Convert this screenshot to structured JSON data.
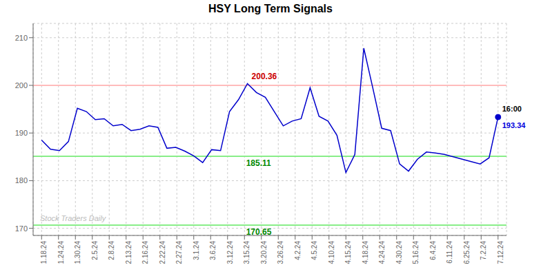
{
  "chart_data": {
    "type": "line",
    "title": "HSY Long Term Signals",
    "x": [
      0,
      0.5294,
      1.0588,
      1.5882,
      2.1176,
      2.6471,
      3.1765,
      3.7059,
      4.2353,
      4.7647,
      5.2941,
      5.8235,
      6.3529,
      6.8824,
      7.4118,
      7.9412,
      8.4706,
      9,
      9.5294,
      10.0588,
      10.5882,
      11.1176,
      11.6471,
      12.1765,
      12.7059,
      13.2353,
      13.7647,
      14.2941,
      14.8235,
      15.3529,
      15.8824,
      16.4118,
      16.9412,
      17.4706,
      18,
      18.5294,
      19.0588,
      19.5882,
      20.1176,
      20.6471,
      21.1765,
      21.7059,
      22.2353,
      22.7647,
      23.2941,
      23.8235,
      24.3529,
      24.8824,
      25.4118,
      25.9412,
      26.4706,
      27
    ],
    "values": [
      188.5,
      186.6,
      186.3,
      188.2,
      195.2,
      194.5,
      192.8,
      193.0,
      191.5,
      191.8,
      190.5,
      190.8,
      191.5,
      191.2,
      186.8,
      187.0,
      186.2,
      185.2,
      183.8,
      186.5,
      186.3,
      194.5,
      197.0,
      200.36,
      198.5,
      197.5,
      194.5,
      191.5,
      192.5,
      193.0,
      199.5,
      193.5,
      192.5,
      189.5,
      181.7,
      185.5,
      207.8,
      199.5,
      191.0,
      190.5,
      183.5,
      182.0,
      184.5,
      186.0,
      185.8,
      185.5,
      185.0,
      184.5,
      184.0,
      183.5,
      184.8,
      193.34
    ],
    "color": "#0000cc",
    "xlim": [
      -0.5,
      27.5
    ],
    "xticks": [
      {
        "value": 0,
        "label": "1.18.24"
      },
      {
        "value": 1,
        "label": "1.24.24"
      },
      {
        "value": 2,
        "label": "1.30.24"
      },
      {
        "value": 3,
        "label": "2.5.24"
      },
      {
        "value": 4,
        "label": "2.8.24"
      },
      {
        "value": 5,
        "label": "2.13.24"
      },
      {
        "value": 6,
        "label": "2.16.24"
      },
      {
        "value": 7,
        "label": "2.22.24"
      },
      {
        "value": 8,
        "label": "2.27.24"
      },
      {
        "value": 9,
        "label": "3.1.24"
      },
      {
        "value": 10,
        "label": "3.6.24"
      },
      {
        "value": 11,
        "label": "3.12.24"
      },
      {
        "value": 12,
        "label": "3.15.24"
      },
      {
        "value": 13,
        "label": "3.20.24"
      },
      {
        "value": 14,
        "label": "3.26.24"
      },
      {
        "value": 15,
        "label": "4.2.24"
      },
      {
        "value": 16,
        "label": "4.5.24"
      },
      {
        "value": 17,
        "label": "4.10.24"
      },
      {
        "value": 18,
        "label": "4.15.24"
      },
      {
        "value": 19,
        "label": "4.18.24"
      },
      {
        "value": 20,
        "label": "4.24.24"
      },
      {
        "value": 21,
        "label": "4.30.24"
      },
      {
        "value": 22,
        "label": "5.16.24"
      },
      {
        "value": 23,
        "label": "6.4.24"
      },
      {
        "value": 24,
        "label": "6.11.24"
      },
      {
        "value": 25,
        "label": "6.25.24"
      },
      {
        "value": 26,
        "label": "7.2.24"
      },
      {
        "value": 27,
        "label": "7.12.24"
      }
    ],
    "ylim": [
      168.5,
      213
    ],
    "yticks": [
      170,
      180,
      190,
      200,
      210
    ],
    "grid": true,
    "reference_lines": [
      {
        "value": 200,
        "color": "#ffbbbb"
      },
      {
        "value": 185.11,
        "color": "#88ee88"
      },
      {
        "value": 170.65,
        "color": "#88ee88"
      }
    ],
    "annotations": [
      {
        "text": "200.36",
        "color": "#cc0000"
      },
      {
        "text": "185.11",
        "color": "#008800"
      },
      {
        "text": "170.65",
        "color": "#008800"
      },
      {
        "text": "Stock Traders Daily",
        "color": "#bbbbbb"
      },
      {
        "text": "16:00",
        "color": "#000000"
      },
      {
        "text": "193.34",
        "color": "#0000dd"
      }
    ]
  }
}
